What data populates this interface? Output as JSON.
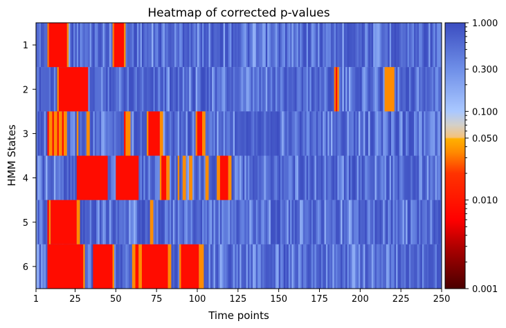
{
  "chart_data": {
    "type": "heatmap",
    "title": "Heatmap of corrected p-values",
    "xlabel": "Time points",
    "ylabel": "HMM States",
    "x_range": [
      1,
      250
    ],
    "x_ticks": [
      1,
      25,
      50,
      75,
      100,
      125,
      150,
      175,
      200,
      225,
      250
    ],
    "rows": [
      "1",
      "2",
      "3",
      "4",
      "5",
      "6"
    ],
    "colorbar": {
      "scale": "log",
      "range": [
        0.001,
        1.0
      ],
      "tick_labels": [
        "1.000",
        "0.300",
        "0.100",
        "0.050",
        "0.010",
        "0.001"
      ],
      "tick_values": [
        1.0,
        0.3,
        0.1,
        0.05,
        0.01,
        0.001
      ],
      "stops": [
        {
          "p": 0.001,
          "color": "#4a0000"
        },
        {
          "p": 0.003,
          "color": "#b00000"
        },
        {
          "p": 0.006,
          "color": "#ff0000"
        },
        {
          "p": 0.02,
          "color": "#ff3300"
        },
        {
          "p": 0.035,
          "color": "#ff8c00"
        },
        {
          "p": 0.049,
          "color": "#ffb000"
        },
        {
          "p": 0.051,
          "color": "#f5c27a"
        },
        {
          "p": 0.07,
          "color": "#d4d0c8"
        },
        {
          "p": 0.1,
          "color": "#aac8ff"
        },
        {
          "p": 0.3,
          "color": "#6f8fe8"
        },
        {
          "p": 1.0,
          "color": "#3b4cc0"
        }
      ]
    },
    "baseline_p": 0.6,
    "significant_segments": [
      {
        "row": 0,
        "segments": [
          [
            8,
            9,
            0.03
          ],
          [
            9,
            20,
            0.008
          ],
          [
            20,
            21,
            0.035
          ],
          [
            48,
            49,
            0.03
          ],
          [
            49,
            55,
            0.008
          ],
          [
            55,
            56,
            0.035
          ]
        ]
      },
      {
        "row": 1,
        "segments": [
          [
            14,
            15,
            0.035
          ],
          [
            15,
            33,
            0.008
          ],
          [
            184,
            185,
            0.03
          ],
          [
            185,
            186,
            0.008
          ],
          [
            186,
            187,
            0.035
          ],
          [
            215,
            221,
            0.035
          ]
        ]
      },
      {
        "row": 2,
        "segments": [
          [
            8,
            9,
            0.008
          ],
          [
            9,
            11,
            0.035
          ],
          [
            11,
            12,
            0.008
          ],
          [
            12,
            14,
            0.035
          ],
          [
            14,
            15,
            0.008
          ],
          [
            15,
            17,
            0.035
          ],
          [
            17,
            18,
            0.008
          ],
          [
            18,
            20,
            0.035
          ],
          [
            26,
            27,
            0.035
          ],
          [
            32,
            34,
            0.035
          ],
          [
            55,
            56,
            0.008
          ],
          [
            56,
            59,
            0.035
          ],
          [
            69,
            70,
            0.035
          ],
          [
            70,
            77,
            0.008
          ],
          [
            77,
            79,
            0.035
          ],
          [
            99,
            100,
            0.03
          ],
          [
            100,
            103,
            0.008
          ],
          [
            103,
            105,
            0.035
          ]
        ]
      },
      {
        "row": 3,
        "segments": [
          [
            26,
            45,
            0.008
          ],
          [
            50,
            64,
            0.008
          ],
          [
            77,
            78,
            0.035
          ],
          [
            78,
            81,
            0.008
          ],
          [
            81,
            83,
            0.035
          ],
          [
            88,
            89,
            0.035
          ],
          [
            91,
            93,
            0.035
          ],
          [
            95,
            97,
            0.035
          ],
          [
            105,
            107,
            0.035
          ],
          [
            112,
            114,
            0.035
          ],
          [
            114,
            119,
            0.008
          ],
          [
            119,
            121,
            0.035
          ]
        ]
      },
      {
        "row": 4,
        "segments": [
          [
            8,
            9,
            0.008
          ],
          [
            9,
            10,
            0.035
          ],
          [
            10,
            11,
            0.008
          ],
          [
            11,
            26,
            0.008
          ],
          [
            26,
            28,
            0.035
          ],
          [
            71,
            73,
            0.035
          ]
        ]
      },
      {
        "row": 5,
        "segments": [
          [
            8,
            30,
            0.008
          ],
          [
            30,
            31,
            0.035
          ],
          [
            36,
            48,
            0.008
          ],
          [
            48,
            49,
            0.035
          ],
          [
            60,
            62,
            0.035
          ],
          [
            62,
            64,
            0.008
          ],
          [
            64,
            66,
            0.035
          ],
          [
            66,
            82,
            0.008
          ],
          [
            82,
            84,
            0.035
          ],
          [
            89,
            90,
            0.035
          ],
          [
            90,
            101,
            0.008
          ],
          [
            101,
            104,
            0.035
          ]
        ]
      }
    ]
  }
}
